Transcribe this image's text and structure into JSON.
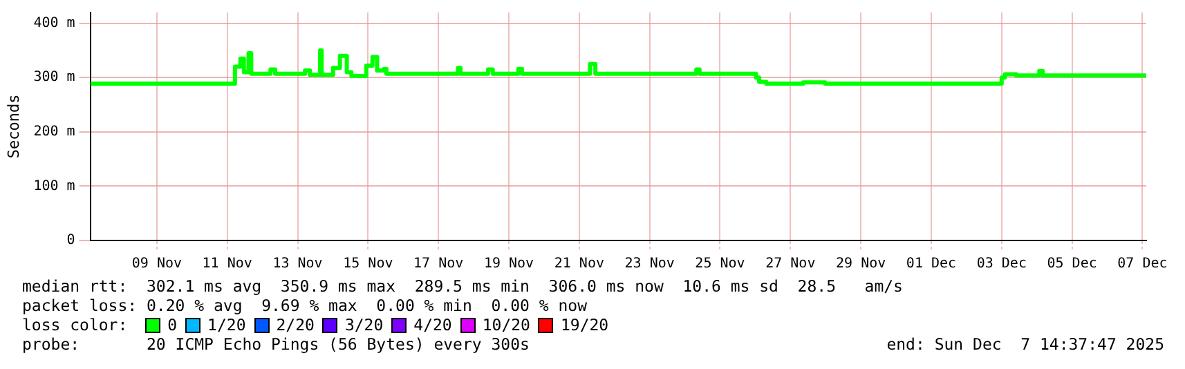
{
  "chart_data": {
    "type": "step",
    "ylabel": "Seconds",
    "xlim": [
      "2025-11-07T14:37",
      "2025-12-07T14:37"
    ],
    "xticks": [
      {
        "value": "2025-11-09T12:00",
        "label": "09 Nov"
      },
      {
        "value": "2025-11-11T12:00",
        "label": "11 Nov"
      },
      {
        "value": "2025-11-13T12:00",
        "label": "13 Nov"
      },
      {
        "value": "2025-11-15T12:00",
        "label": "15 Nov"
      },
      {
        "value": "2025-11-17T12:00",
        "label": "17 Nov"
      },
      {
        "value": "2025-11-19T12:00",
        "label": "19 Nov"
      },
      {
        "value": "2025-11-21T12:00",
        "label": "21 Nov"
      },
      {
        "value": "2025-11-23T12:00",
        "label": "23 Nov"
      },
      {
        "value": "2025-11-25T12:00",
        "label": "25 Nov"
      },
      {
        "value": "2025-11-27T12:00",
        "label": "27 Nov"
      },
      {
        "value": "2025-11-29T12:00",
        "label": "29 Nov"
      },
      {
        "value": "2025-12-01T12:00",
        "label": "01 Dec"
      },
      {
        "value": "2025-12-03T12:00",
        "label": "03 Dec"
      },
      {
        "value": "2025-12-05T12:00",
        "label": "05 Dec"
      },
      {
        "value": "2025-12-07T12:00",
        "label": "07 Dec"
      }
    ],
    "ylim": [
      0,
      420
    ],
    "yticks": [
      0,
      {
        "value": 100,
        "label": "100 m"
      },
      {
        "value": 200,
        "label": "200 m"
      },
      {
        "value": 300,
        "label": "300 m"
      },
      {
        "value": 400,
        "label": "400 m"
      }
    ],
    "grid": true,
    "legend": false,
    "marker": "none",
    "line_style": "solid",
    "series": [
      {
        "color": "#00ff00",
        "x": [
          "2025-11-07T14:40",
          "2025-11-11T17:15",
          "2025-11-11T21:00",
          "2025-11-11T23:20",
          "2025-11-12T02:30",
          "2025-11-12T04:20",
          "2025-11-12T17:30",
          "2025-11-12T20:40",
          "2025-11-13T17:00",
          "2025-11-13T20:20",
          "2025-11-14T03:20",
          "2025-11-14T04:20",
          "2025-11-14T12:10",
          "2025-11-14T16:50",
          "2025-11-14T21:30",
          "2025-11-15T00:40",
          "2025-11-15T10:50",
          "2025-11-15T15:00",
          "2025-11-15T18:10",
          "2025-11-15T22:50",
          "2025-11-16T00:30",
          "2025-11-18T01:20",
          "2025-11-18T03:00",
          "2025-11-18T21:50",
          "2025-11-19T01:00",
          "2025-11-19T18:30",
          "2025-11-19T21:00",
          "2025-11-21T19:20",
          "2025-11-21T23:00",
          "2025-11-24T19:50",
          "2025-11-24T22:00",
          "2025-11-26T12:30",
          "2025-11-26T14:40",
          "2025-11-26T19:30",
          "2025-11-27T20:40",
          "2025-11-28T11:40",
          "2025-12-03T12:00",
          "2025-12-03T14:10",
          "2025-12-03T22:00",
          "2025-12-04T13:40",
          "2025-12-04T16:00",
          "2025-12-07T14:30"
        ],
        "values": [
          289,
          320,
          335,
          310,
          345,
          307,
          315,
          307,
          313,
          305,
          350,
          305,
          318,
          340,
          310,
          303,
          322,
          338,
          313,
          316,
          307,
          318,
          307,
          315,
          307,
          316,
          307,
          325,
          307,
          315,
          307,
          300,
          292,
          289,
          291,
          289,
          300,
          306,
          304,
          312,
          304,
          304
        ]
      }
    ],
    "annotations": [
      "median rtt:  302.1 ms avg  350.9 ms max  289.5 ms min  306.0 ms now  10.6 ms sd  28.5   am/s",
      "packet loss: 0.20 % avg  9.69 % max  0.00 % min  0.00 % now",
      "loss color:",
      "0",
      "1/20",
      "2/20",
      "3/20",
      "4/20",
      "10/20",
      "19/20",
      "probe:       20 ICMP Echo Pings (56 Bytes) every 300s",
      "end: Sun Dec  7 14:37:47 2025"
    ]
  }
}
